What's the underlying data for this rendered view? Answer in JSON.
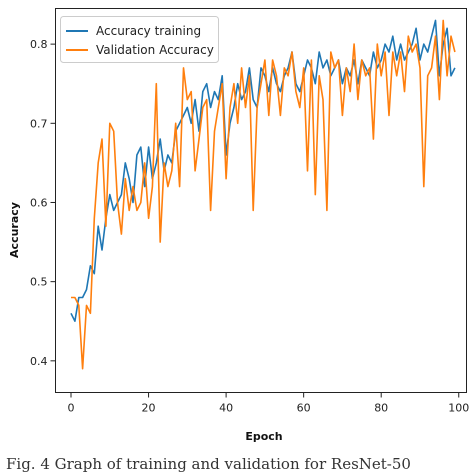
{
  "caption": "Fig. 4 Graph of training and validation for ResNet-50",
  "chart_data": {
    "type": "line",
    "title": "",
    "xlabel": "Epoch",
    "ylabel": "Accuracy",
    "xlim": [
      -4,
      102
    ],
    "ylim": [
      0.36,
      0.845
    ],
    "xticks": [
      0,
      20,
      40,
      60,
      80,
      100
    ],
    "yticks": [
      0.4,
      0.5,
      0.6,
      0.7,
      0.8
    ],
    "grid": false,
    "legend_position": "top-left",
    "series": [
      {
        "name": "Accuracy training",
        "color": "#1f77b4",
        "x": [
          0,
          1,
          2,
          3,
          4,
          5,
          6,
          7,
          8,
          9,
          10,
          11,
          12,
          13,
          14,
          15,
          16,
          17,
          18,
          19,
          20,
          21,
          22,
          23,
          24,
          25,
          26,
          27,
          28,
          29,
          30,
          31,
          32,
          33,
          34,
          35,
          36,
          37,
          38,
          39,
          40,
          41,
          42,
          43,
          44,
          45,
          46,
          47,
          48,
          49,
          50,
          51,
          52,
          53,
          54,
          55,
          56,
          57,
          58,
          59,
          60,
          61,
          62,
          63,
          64,
          65,
          66,
          67,
          68,
          69,
          70,
          71,
          72,
          73,
          74,
          75,
          76,
          77,
          78,
          79,
          80,
          81,
          82,
          83,
          84,
          85,
          86,
          87,
          88,
          89,
          90,
          91,
          92,
          93,
          94,
          95,
          96,
          97,
          98,
          99
        ],
        "values": [
          0.46,
          0.45,
          0.48,
          0.48,
          0.49,
          0.52,
          0.51,
          0.57,
          0.54,
          0.58,
          0.61,
          0.59,
          0.6,
          0.61,
          0.65,
          0.63,
          0.6,
          0.66,
          0.67,
          0.62,
          0.67,
          0.63,
          0.65,
          0.68,
          0.64,
          0.66,
          0.65,
          0.69,
          0.7,
          0.71,
          0.72,
          0.7,
          0.73,
          0.69,
          0.74,
          0.75,
          0.72,
          0.74,
          0.73,
          0.76,
          0.66,
          0.7,
          0.72,
          0.75,
          0.73,
          0.74,
          0.77,
          0.73,
          0.72,
          0.77,
          0.76,
          0.74,
          0.77,
          0.75,
          0.74,
          0.76,
          0.77,
          0.79,
          0.75,
          0.74,
          0.76,
          0.78,
          0.77,
          0.75,
          0.79,
          0.77,
          0.78,
          0.76,
          0.77,
          0.78,
          0.75,
          0.77,
          0.76,
          0.78,
          0.75,
          0.78,
          0.77,
          0.76,
          0.79,
          0.77,
          0.78,
          0.8,
          0.79,
          0.81,
          0.78,
          0.8,
          0.78,
          0.79,
          0.8,
          0.82,
          0.78,
          0.8,
          0.79,
          0.81,
          0.83,
          0.76,
          0.8,
          0.82,
          0.76,
          0.77
        ]
      },
      {
        "name": "Validation Accuracy",
        "color": "#ff7f0e",
        "x": [
          0,
          1,
          2,
          3,
          4,
          5,
          6,
          7,
          8,
          9,
          10,
          11,
          12,
          13,
          14,
          15,
          16,
          17,
          18,
          19,
          20,
          21,
          22,
          23,
          24,
          25,
          26,
          27,
          28,
          29,
          30,
          31,
          32,
          33,
          34,
          35,
          36,
          37,
          38,
          39,
          40,
          41,
          42,
          43,
          44,
          45,
          46,
          47,
          48,
          49,
          50,
          51,
          52,
          53,
          54,
          55,
          56,
          57,
          58,
          59,
          60,
          61,
          62,
          63,
          64,
          65,
          66,
          67,
          68,
          69,
          70,
          71,
          72,
          73,
          74,
          75,
          76,
          77,
          78,
          79,
          80,
          81,
          82,
          83,
          84,
          85,
          86,
          87,
          88,
          89,
          90,
          91,
          92,
          93,
          94,
          95,
          96,
          97,
          98,
          99
        ],
        "values": [
          0.48,
          0.48,
          0.47,
          0.39,
          0.47,
          0.46,
          0.58,
          0.65,
          0.68,
          0.57,
          0.7,
          0.69,
          0.6,
          0.56,
          0.63,
          0.59,
          0.62,
          0.59,
          0.6,
          0.65,
          0.58,
          0.62,
          0.75,
          0.55,
          0.65,
          0.62,
          0.64,
          0.7,
          0.62,
          0.77,
          0.73,
          0.74,
          0.64,
          0.68,
          0.72,
          0.73,
          0.59,
          0.69,
          0.72,
          0.75,
          0.63,
          0.72,
          0.75,
          0.7,
          0.77,
          0.72,
          0.76,
          0.59,
          0.72,
          0.75,
          0.78,
          0.71,
          0.78,
          0.76,
          0.71,
          0.77,
          0.76,
          0.79,
          0.74,
          0.72,
          0.77,
          0.64,
          0.78,
          0.61,
          0.76,
          0.73,
          0.59,
          0.79,
          0.77,
          0.78,
          0.71,
          0.77,
          0.74,
          0.8,
          0.73,
          0.78,
          0.76,
          0.77,
          0.68,
          0.8,
          0.76,
          0.79,
          0.71,
          0.79,
          0.76,
          0.79,
          0.74,
          0.81,
          0.79,
          0.8,
          0.77,
          0.62,
          0.76,
          0.77,
          0.81,
          0.73,
          0.83,
          0.76,
          0.81,
          0.79
        ]
      }
    ]
  }
}
